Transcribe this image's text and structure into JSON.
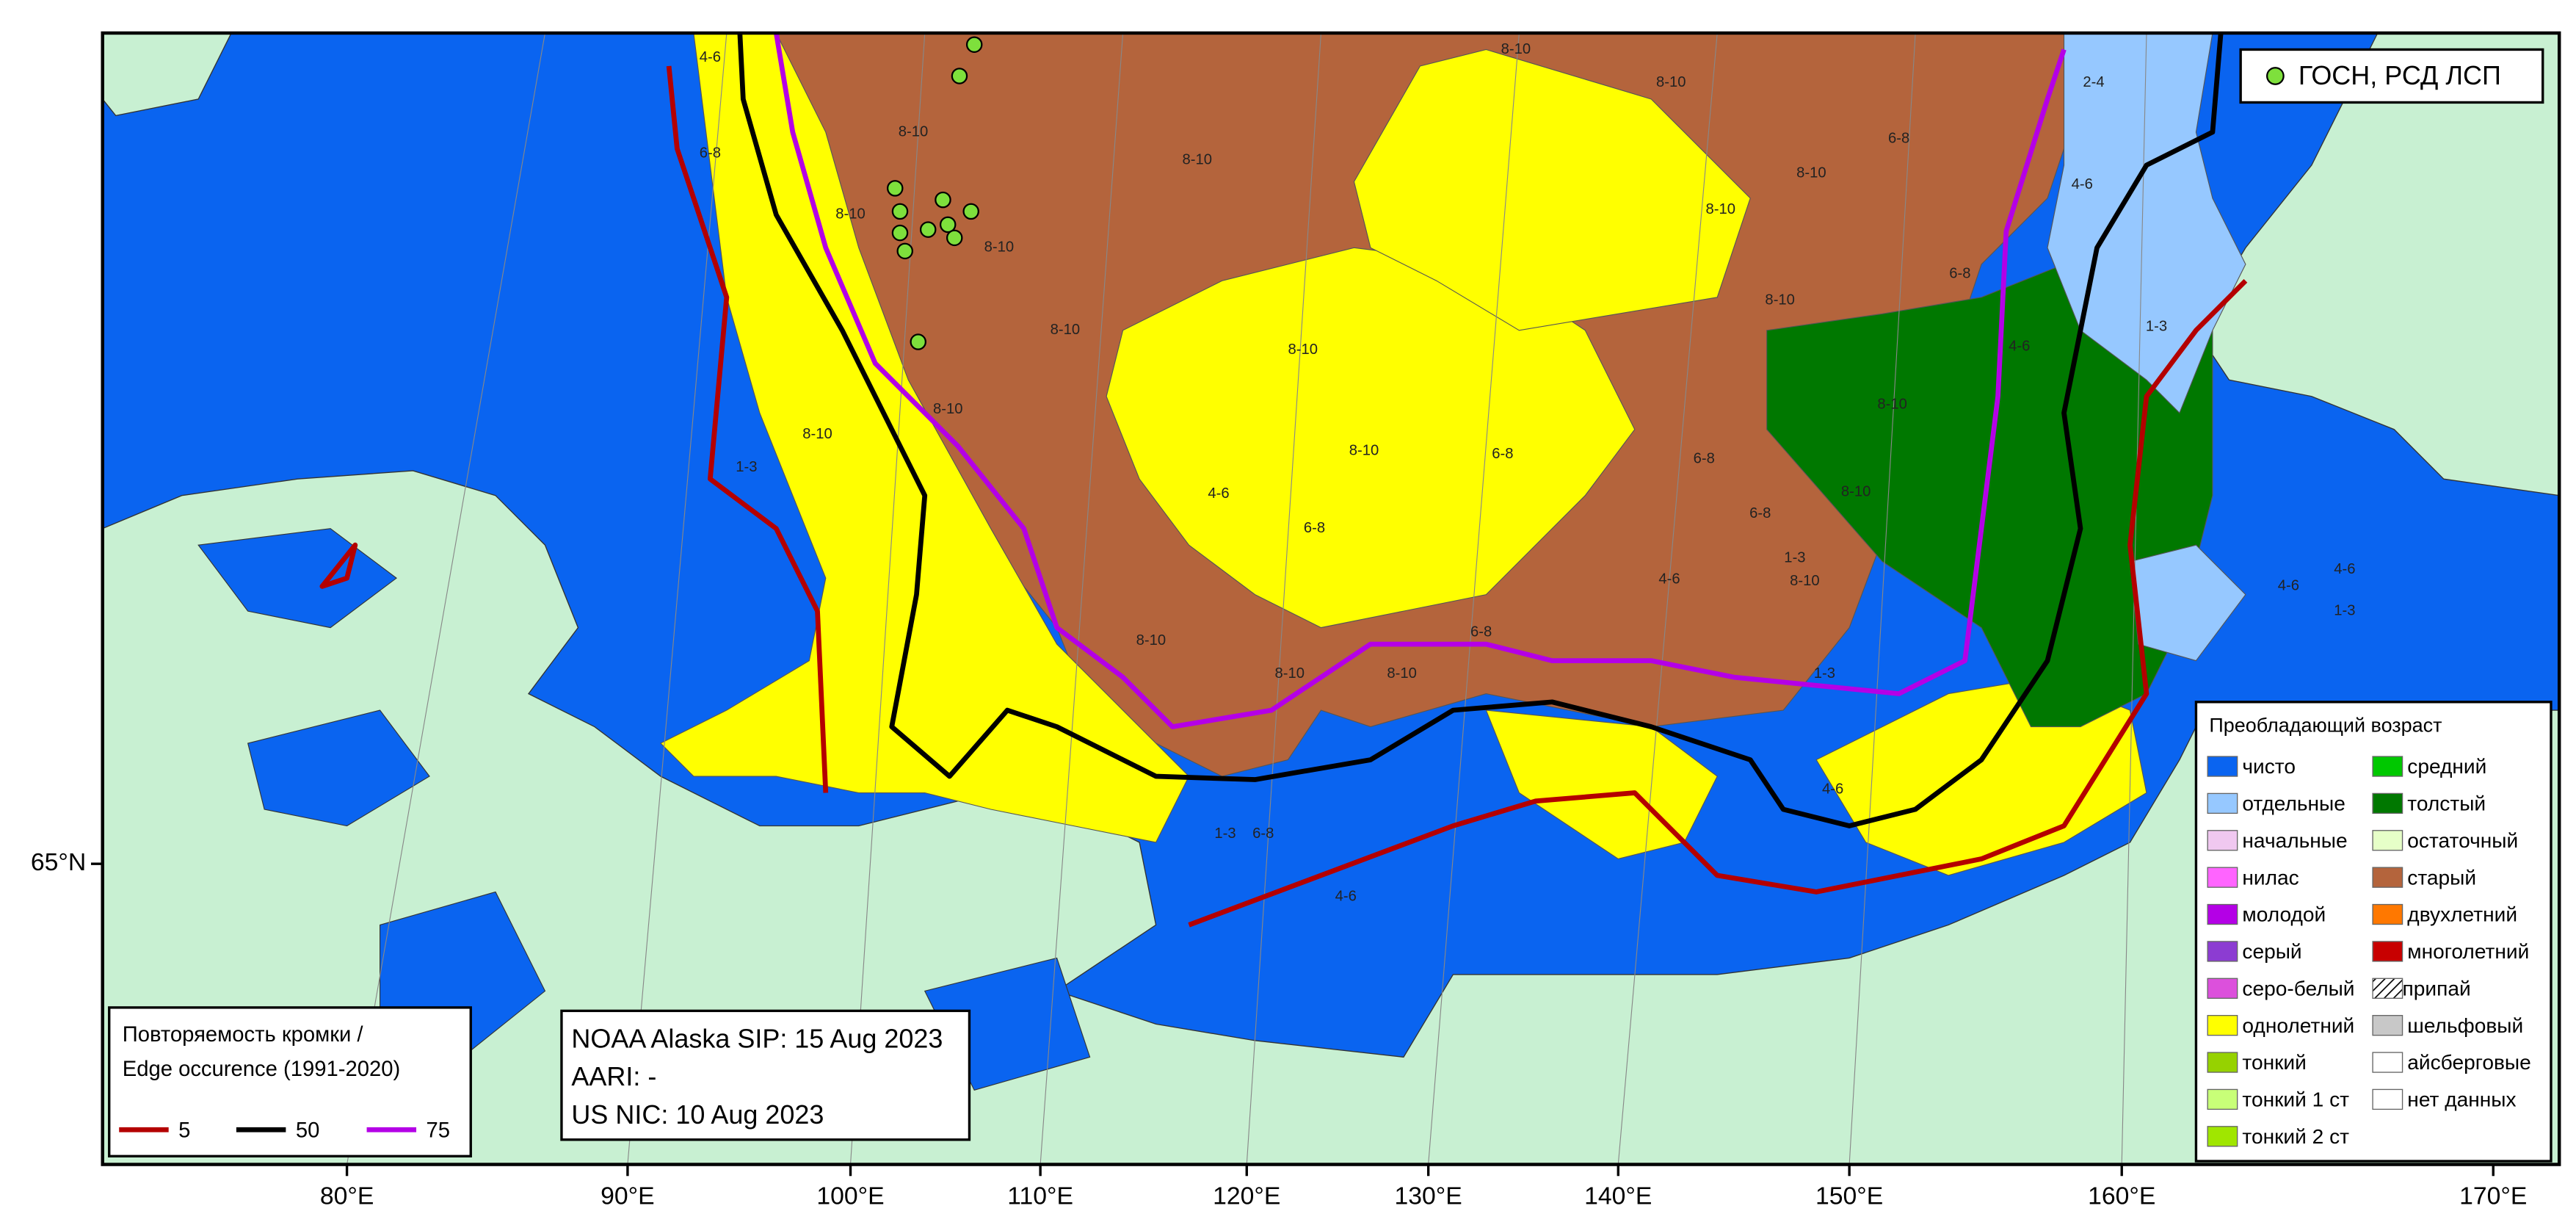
{
  "map": {
    "lon_labels": [
      "80°E",
      "90°E",
      "100°E",
      "110°E",
      "120°E",
      "130°E",
      "140°E",
      "150°E",
      "160°E",
      "170°E"
    ],
    "lat_labels": [
      "65°N"
    ],
    "point_legend": {
      "label": "ГОСН, РСД ЛСП",
      "color": "#7ee03c"
    },
    "edge_legend": {
      "title": [
        "Повторяемость кромки /",
        "Edge occurence (1991-2020)"
      ],
      "items": [
        {
          "label": "5",
          "color": "#b40000"
        },
        {
          "label": "50",
          "color": "#000000"
        },
        {
          "label": "75",
          "color": "#b400e6"
        }
      ]
    },
    "sources": [
      "NOAA Alaska SIP: 15 Aug 2023",
      "AARI: -",
      "US NIC: 10 Aug 2023"
    ],
    "age_legend": {
      "title": "Преобладающий возраст",
      "items": [
        {
          "label": "чисто",
          "color": "#0a64f0"
        },
        {
          "label": "отдельные",
          "color": "#96c8ff"
        },
        {
          "label": "начальные",
          "color": "#f0c8f0"
        },
        {
          "label": "нилас",
          "color": "#ff64ff"
        },
        {
          "label": "молодой",
          "color": "#b400e6"
        },
        {
          "label": "серый",
          "color": "#8c3cd2"
        },
        {
          "label": "серо-белый",
          "color": "#dc50dc"
        },
        {
          "label": "однолетний",
          "color": "#ffff00"
        },
        {
          "label": "тонкий",
          "color": "#96d200"
        },
        {
          "label": "тонкий 1 ст",
          "color": "#c8ff78"
        },
        {
          "label": "тонкий 2 ст",
          "color": "#a0e600"
        },
        {
          "label": "средний",
          "color": "#00c800"
        },
        {
          "label": "толстый",
          "color": "#007800"
        },
        {
          "label": "остаточный",
          "color": "#e6ffc8"
        },
        {
          "label": "старый",
          "color": "#b4643c"
        },
        {
          "label": "двухлетний",
          "color": "#ff7800"
        },
        {
          "label": "многолетний",
          "color": "#c80000"
        },
        {
          "label": "припай",
          "color": "#ffffff",
          "hatched": true
        },
        {
          "label": "шельфовый",
          "color": "#c8c8c8"
        },
        {
          "label": "айсберговые",
          "color": "#ffffff"
        },
        {
          "label": "нет данных",
          "color": "#ffffff"
        }
      ]
    },
    "ice_labels": [
      "8-10",
      "8-10",
      "8-10",
      "8-10",
      "8-10",
      "8-10",
      "8-10",
      "8-10",
      "8-10",
      "8-10",
      "8-10",
      "8-10",
      "8-10",
      "8-10",
      "8-10",
      "8-10",
      "8-10",
      "8-10",
      "8-10",
      "6-8",
      "6-8",
      "6-8",
      "6-8",
      "6-8",
      "6-8",
      "6-8",
      "4-6",
      "4-6",
      "4-6",
      "4-6",
      "4-6",
      "4-6",
      "4-6",
      "1-3",
      "1-3",
      "1-3",
      "6-8",
      "4-6",
      "2-4",
      "1-3",
      "1-3",
      "4-6",
      "6-8",
      "1-3",
      "8-10"
    ]
  }
}
